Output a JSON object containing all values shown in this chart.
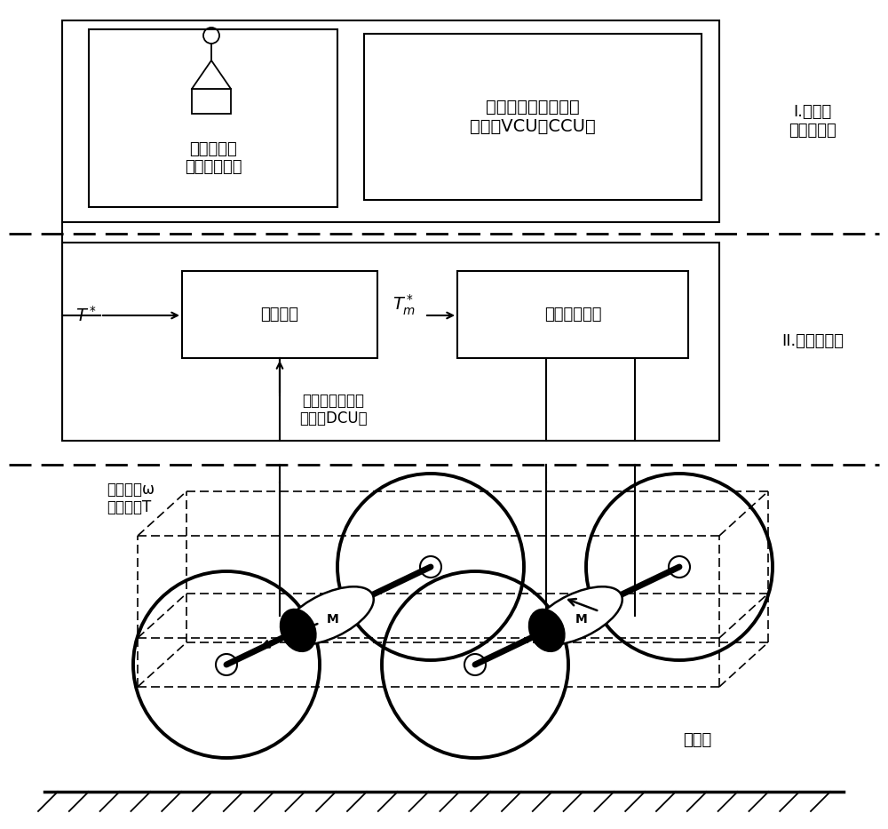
{
  "bg_color": "#ffffff",
  "fig_width": 10.0,
  "fig_height": 9.33,
  "dpi": 100,
  "layer1_label": "I.列车及\n车辆级控制",
  "driver_label": "司机控制器\n及各指令开关",
  "vcu_label": "列车网络控制与诊断\n单元（VCU或CCU）",
  "layer2_label": "II.传动级控制",
  "adhesion_label": "黏着控制",
  "traction_label": "牵引电机控制",
  "dcu_label": "牵引变流器控制\n系统（DCU）",
  "motor_speed_label": "电机转速ω\n电机转矩T",
  "bogie_label": "转向架"
}
